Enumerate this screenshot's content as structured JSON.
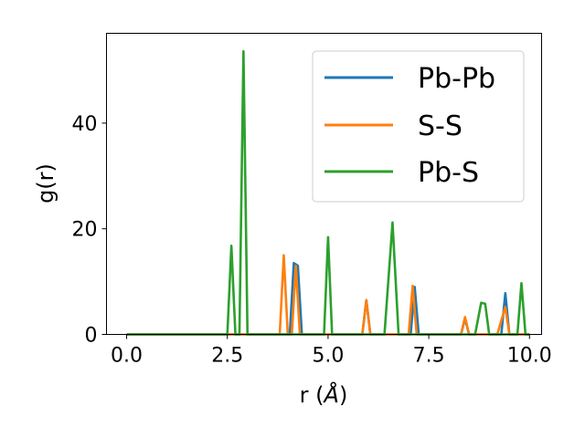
{
  "chart_data": {
    "type": "line",
    "xlabel_prefix": "r (",
    "xlabel_unit": "Å",
    "xlabel_suffix": ")",
    "ylabel": "g(r)",
    "xlim": [
      -0.5,
      10.3
    ],
    "ylim": [
      0,
      57
    ],
    "xticks": [
      0.0,
      2.5,
      5.0,
      7.5,
      10.0
    ],
    "xtick_labels": [
      "0.0",
      "2.5",
      "5.0",
      "7.5",
      "10.0"
    ],
    "yticks": [
      0,
      20,
      40
    ],
    "ytick_labels": [
      "0",
      "20",
      "40"
    ],
    "grid": false,
    "legend_position": "top-right",
    "series": [
      {
        "name": "Pb-Pb",
        "color": "#1f77b4",
        "x": [
          0.0,
          3.95,
          4.05,
          4.15,
          4.25,
          4.35,
          5.85,
          5.95,
          6.05,
          7.05,
          7.15,
          7.25,
          8.3,
          8.4,
          8.5,
          9.3,
          9.4,
          9.5,
          10.0
        ],
        "y": [
          0,
          0,
          0,
          13.5,
          13.0,
          0,
          0,
          6.5,
          0,
          0,
          9.0,
          0,
          0,
          3.0,
          0,
          0,
          7.8,
          0,
          0
        ]
      },
      {
        "name": "S-S",
        "color": "#ff7f0e",
        "x": [
          0.0,
          3.8,
          3.9,
          4.0,
          4.1,
          4.2,
          4.3,
          5.85,
          5.95,
          6.05,
          7.0,
          7.1,
          7.2,
          8.3,
          8.4,
          8.5,
          9.2,
          9.4,
          9.5,
          10.0
        ],
        "y": [
          0,
          0,
          15.0,
          0,
          0,
          13.0,
          0,
          0,
          6.5,
          0,
          0,
          9.2,
          0,
          0,
          3.3,
          0,
          0,
          5.2,
          0,
          0
        ]
      },
      {
        "name": "Pb-S",
        "color": "#2ca02c",
        "x": [
          0.0,
          2.5,
          2.6,
          2.7,
          2.8,
          2.9,
          3.0,
          4.9,
          5.0,
          5.1,
          6.4,
          6.6,
          6.75,
          8.65,
          8.8,
          8.9,
          9.0,
          9.7,
          9.8,
          9.9,
          10.0
        ],
        "y": [
          0,
          0,
          16.8,
          0,
          0,
          53.6,
          0,
          0,
          18.4,
          0,
          0,
          21.2,
          0,
          0,
          6.0,
          5.8,
          0,
          0,
          9.7,
          0,
          0
        ]
      }
    ]
  }
}
